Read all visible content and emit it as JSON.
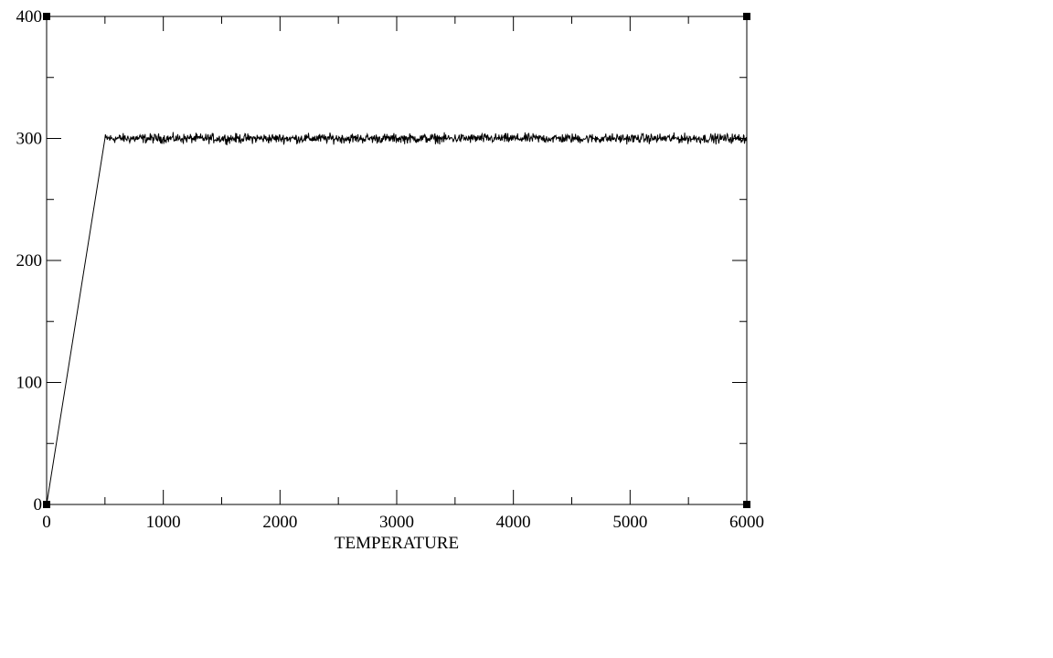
{
  "chart_data": {
    "type": "line",
    "title": "",
    "xlabel": "TEMPERATURE",
    "ylabel": "",
    "xlim": [
      0,
      6000
    ],
    "ylim": [
      0,
      400
    ],
    "x_ticks": [
      "0",
      "1000",
      "2000",
      "3000",
      "4000",
      "5000",
      "6000"
    ],
    "y_ticks": [
      "0",
      "100",
      "200",
      "300",
      "400"
    ],
    "grid": false,
    "series": [
      {
        "x": [
          0,
          500,
          6000
        ],
        "y": [
          0,
          300,
          300
        ],
        "plateau_noise_amplitude": 3,
        "color": "#000000"
      }
    ]
  }
}
